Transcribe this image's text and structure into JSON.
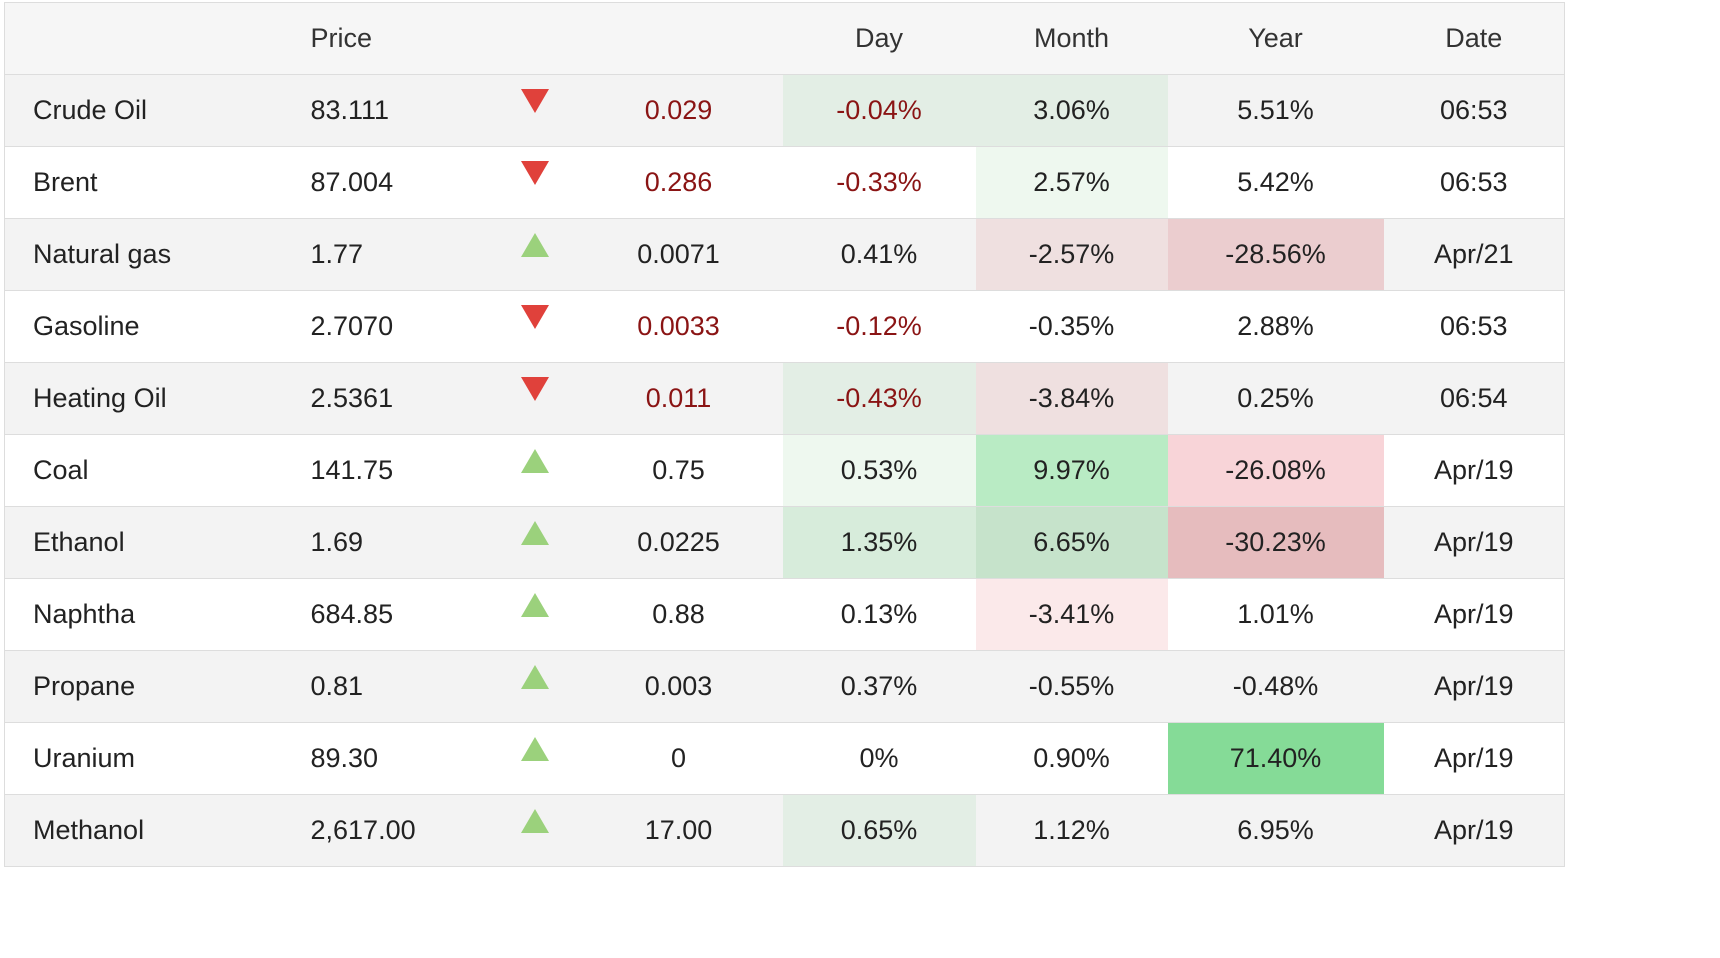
{
  "headers": {
    "name": "",
    "price": "Price",
    "arrow": "",
    "change": "",
    "day": "Day",
    "month": "Month",
    "year": "Year",
    "date": "Date"
  },
  "colors": {
    "negative_text": "#8a1414",
    "down_arrow": "#e0413b",
    "up_arrow": "#9bd17c"
  },
  "rows": [
    {
      "name": "Crude Oil",
      "price": "83.111",
      "direction": "down",
      "change": "0.029",
      "day": "-0.04%",
      "month": "3.06%",
      "year": "5.51%",
      "date": "06:53",
      "day_bg": "#e3eee5",
      "month_bg": "#e3eee5",
      "year_bg": ""
    },
    {
      "name": "Brent",
      "price": "87.004",
      "direction": "down",
      "change": "0.286",
      "day": "-0.33%",
      "month": "2.57%",
      "year": "5.42%",
      "date": "06:53",
      "day_bg": "",
      "month_bg": "#eef8ef",
      "year_bg": ""
    },
    {
      "name": "Natural gas",
      "price": "1.77",
      "direction": "up",
      "change": "0.0071",
      "day": "0.41%",
      "month": "-2.57%",
      "year": "-28.56%",
      "date": "Apr/21",
      "day_bg": "",
      "month_bg": "#efe0e0",
      "year_bg": "#ebcdcf"
    },
    {
      "name": "Gasoline",
      "price": "2.7070",
      "direction": "down",
      "change": "0.0033",
      "day": "-0.12%",
      "month": "-0.35%",
      "year": "2.88%",
      "date": "06:53",
      "day_bg": "",
      "month_bg": "",
      "year_bg": ""
    },
    {
      "name": "Heating Oil",
      "price": "2.5361",
      "direction": "down",
      "change": "0.011",
      "day": "-0.43%",
      "month": "-3.84%",
      "year": "0.25%",
      "date": "06:54",
      "day_bg": "#e3eee5",
      "month_bg": "#efe0e0",
      "year_bg": ""
    },
    {
      "name": "Coal",
      "price": "141.75",
      "direction": "up",
      "change": "0.75",
      "day": "0.53%",
      "month": "9.97%",
      "year": "-26.08%",
      "date": "Apr/19",
      "day_bg": "#eef8ef",
      "month_bg": "#b9ebc4",
      "year_bg": "#f8d4d8"
    },
    {
      "name": "Ethanol",
      "price": "1.69",
      "direction": "up",
      "change": "0.0225",
      "day": "1.35%",
      "month": "6.65%",
      "year": "-30.23%",
      "date": "Apr/19",
      "day_bg": "#d7ecdb",
      "month_bg": "#c6e3cb",
      "year_bg": "#e6bcbe"
    },
    {
      "name": "Naphtha",
      "price": "684.85",
      "direction": "up",
      "change": "0.88",
      "day": "0.13%",
      "month": "-3.41%",
      "year": "1.01%",
      "date": "Apr/19",
      "day_bg": "",
      "month_bg": "#fbe9ea",
      "year_bg": ""
    },
    {
      "name": "Propane",
      "price": "0.81",
      "direction": "up",
      "change": "0.003",
      "day": "0.37%",
      "month": "-0.55%",
      "year": "-0.48%",
      "date": "Apr/19",
      "day_bg": "",
      "month_bg": "",
      "year_bg": ""
    },
    {
      "name": "Uranium",
      "price": "89.30",
      "direction": "up",
      "change": "0",
      "day": "0%",
      "month": "0.90%",
      "year": "71.40%",
      "date": "Apr/19",
      "day_bg": "",
      "month_bg": "",
      "year_bg": "#85db97"
    },
    {
      "name": "Methanol",
      "price": "2,617.00",
      "direction": "up",
      "change": "17.00",
      "day": "0.65%",
      "month": "1.12%",
      "year": "6.95%",
      "date": "Apr/19",
      "day_bg": "#e3eee5",
      "month_bg": "",
      "year_bg": ""
    }
  ]
}
